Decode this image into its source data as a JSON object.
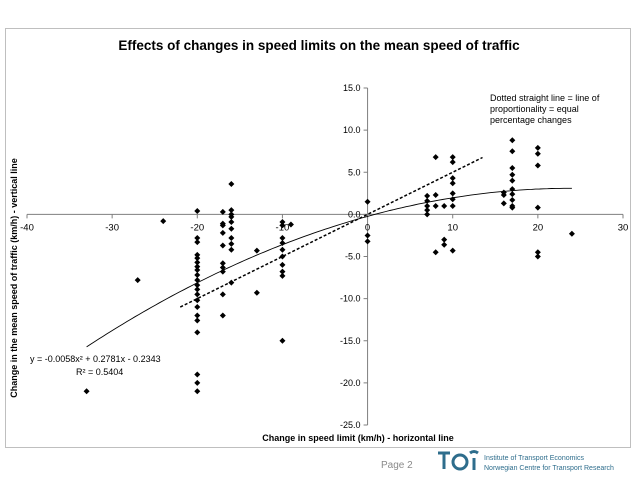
{
  "chart_data": {
    "type": "scatter",
    "title": "Effects of changes in speed limits on the mean speed of traffic",
    "xlabel": "Change in speed limit (km/h) - horizontal line",
    "ylabel": "Change in the mean speed of traffic (km/h) - vertical line",
    "xlim": [
      -40,
      30
    ],
    "ylim": [
      -25,
      15
    ],
    "x_ticks": [
      "-40",
      "-30",
      "-20",
      "-10",
      "0",
      "10",
      "20",
      "30"
    ],
    "y_ticks": [
      "15.0",
      "10.0",
      "5.0",
      "0.0",
      "-5.0",
      "-10.0",
      "-15.0",
      "-20.0",
      "-25.0"
    ],
    "grid": false,
    "points": [
      [
        -33,
        -21
      ],
      [
        -27,
        -7.8
      ],
      [
        -24,
        -0.8
      ],
      [
        -20,
        0.4
      ],
      [
        -20,
        -2.8
      ],
      [
        -20,
        -3.3
      ],
      [
        -20,
        -4.8
      ],
      [
        -20,
        -5.2
      ],
      [
        -20,
        -5.7
      ],
      [
        -20,
        -6.2
      ],
      [
        -20,
        -6.6
      ],
      [
        -20,
        -7.2
      ],
      [
        -20,
        -7.8
      ],
      [
        -20,
        -8.4
      ],
      [
        -20,
        -8.9
      ],
      [
        -20,
        -9.5
      ],
      [
        -20,
        -10.2
      ],
      [
        -20,
        -11
      ],
      [
        -20,
        -12
      ],
      [
        -20,
        -12.6
      ],
      [
        -20,
        -14
      ],
      [
        -20,
        -19
      ],
      [
        -20,
        -20
      ],
      [
        -20,
        -21
      ],
      [
        -17,
        0.3
      ],
      [
        -17,
        -1.1
      ],
      [
        -17,
        -1.3
      ],
      [
        -17,
        -2.2
      ],
      [
        -17,
        -3.7
      ],
      [
        -17,
        -5.8
      ],
      [
        -17,
        -6.3
      ],
      [
        -17,
        -6.8
      ],
      [
        -17,
        -9.5
      ],
      [
        -17,
        -12
      ],
      [
        -16,
        3.6
      ],
      [
        -16,
        0.5
      ],
      [
        -16,
        0
      ],
      [
        -16,
        -0.3
      ],
      [
        -16,
        -0.9
      ],
      [
        -16,
        -1.7
      ],
      [
        -16,
        -2.8
      ],
      [
        -16,
        -3.5
      ],
      [
        -16,
        -4.2
      ],
      [
        -16,
        -8.1
      ],
      [
        -13,
        -4.3
      ],
      [
        -13,
        -9.3
      ],
      [
        -10,
        -0.9
      ],
      [
        -10,
        -1.3
      ],
      [
        -10,
        -2.8
      ],
      [
        -10,
        -3.4
      ],
      [
        -10,
        -4.2
      ],
      [
        -10,
        -5
      ],
      [
        -10,
        -6
      ],
      [
        -10,
        -6.8
      ],
      [
        -10,
        -7.3
      ],
      [
        -10,
        -15
      ],
      [
        -9,
        -1.2
      ],
      [
        0,
        1.5
      ],
      [
        0,
        -2.5
      ],
      [
        0,
        -3.2
      ],
      [
        7,
        2.2
      ],
      [
        7,
        1.6
      ],
      [
        7,
        1.0
      ],
      [
        7,
        0.5
      ],
      [
        7,
        0
      ],
      [
        8,
        6.8
      ],
      [
        8,
        2.3
      ],
      [
        8,
        1.0
      ],
      [
        8,
        -4.5
      ],
      [
        9,
        1.0
      ],
      [
        9,
        -3.0
      ],
      [
        9,
        -3.6
      ],
      [
        10,
        6.8
      ],
      [
        10,
        6.2
      ],
      [
        10,
        4.3
      ],
      [
        10,
        3.7
      ],
      [
        10,
        2.5
      ],
      [
        10,
        1.8
      ],
      [
        10,
        1.0
      ],
      [
        10,
        -4.3
      ],
      [
        16,
        2.6
      ],
      [
        16,
        1.3
      ],
      [
        16,
        2.3
      ],
      [
        17,
        8.8
      ],
      [
        17,
        7.5
      ],
      [
        17,
        5.5
      ],
      [
        17,
        4.7
      ],
      [
        17,
        4.0
      ],
      [
        17,
        3.0
      ],
      [
        17,
        2.4
      ],
      [
        17,
        1.7
      ],
      [
        17,
        1.0
      ],
      [
        17,
        0.8
      ],
      [
        20,
        7.9
      ],
      [
        20,
        7.2
      ],
      [
        20,
        5.8
      ],
      [
        20,
        0.8
      ],
      [
        20,
        -4.5
      ],
      [
        20,
        -5.0
      ],
      [
        24,
        -2.3
      ]
    ],
    "trendline": {
      "type": "polynomial",
      "coefficients": [
        -0.0058,
        0.2781,
        -0.2343
      ],
      "x_range": [
        -33,
        24
      ],
      "equation": "y = -0.0058x² + 0.2781x - 0.2343",
      "r_squared": "R² = 0.5404"
    },
    "reference_line": {
      "style": "dotted",
      "slope": 0.5,
      "x_range": [
        -22,
        13.5
      ]
    },
    "annotation": "Dotted straight line = line of proportionality = equal percentage changes",
    "marker_color": "#000000"
  },
  "footer": {
    "page_label": "Page 2",
    "logo_line1": "Institute of Transport Economics",
    "logo_line2": "Norwegian Centre for Transport Research",
    "logo_color": "#2e6d8c"
  }
}
